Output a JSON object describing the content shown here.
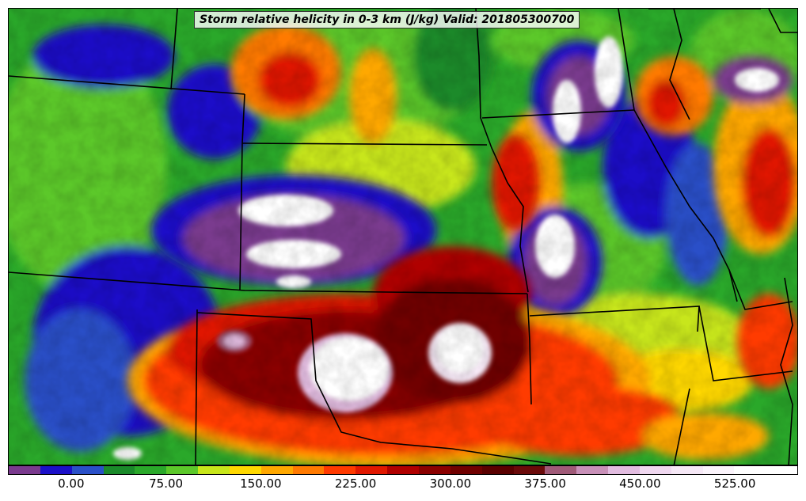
{
  "title": "Storm relative helicity in 0-3 km (J/kg) Valid: 201805300700",
  "colorbar": {
    "min": -50,
    "max": 575,
    "step": 25,
    "colors": [
      "#7a3a8e",
      "#1b10c8",
      "#2a50c8",
      "#1a8a2a",
      "#2aa82a",
      "#5cc82a",
      "#c8e61a",
      "#ffd800",
      "#ffa800",
      "#ff7a00",
      "#ff3a00",
      "#e01800",
      "#b00000",
      "#8a0000",
      "#700000",
      "#5a0000",
      "#6a0a0a",
      "#a05a78",
      "#c890b8",
      "#e2bce0",
      "#f0d8f0",
      "#f6e8f6",
      "#fbf4fb",
      "#ffffff",
      "#ffffff"
    ],
    "tick_labels": [
      "0.00",
      "75.00",
      "150.00",
      "225.00",
      "300.00",
      "375.00",
      "450.00",
      "525.00"
    ],
    "tick_values": [
      0,
      75,
      150,
      225,
      300,
      375,
      450,
      525
    ]
  },
  "map": {
    "field": "Storm relative helicity 0-3 km",
    "units": "J/kg",
    "valid_time": "201805300700",
    "region": "Central United States"
  }
}
